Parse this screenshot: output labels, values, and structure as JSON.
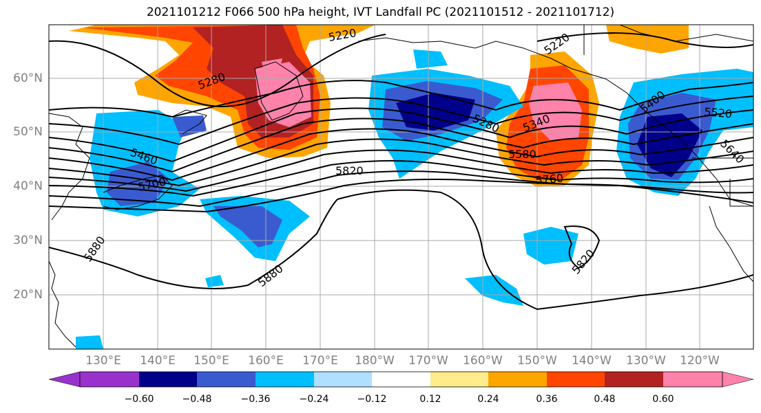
{
  "title": "2021101212 F066 500 hPa height, IVT Landfall PC (2021101512 - 2021101712)",
  "lat_labels": [
    "60°N",
    "50°N",
    "40°N",
    "30°N",
    "20°N"
  ],
  "lon_labels": [
    "130°E",
    "140°E",
    "150°E",
    "160°E",
    "170°E",
    "180°W",
    "170°W",
    "160°W",
    "150°W",
    "140°W",
    "130°W",
    "120°W"
  ],
  "contour_labels": [
    "5220",
    "5220",
    "5280",
    "5340",
    "5400",
    "5460",
    "5520",
    "5580",
    "5640",
    "5700",
    "5760",
    "5820",
    "5820",
    "5880",
    "5880",
    "5280"
  ],
  "colorbar": {
    "labels": [
      "−0.60",
      "−0.48",
      "−0.36",
      "−0.24",
      "−0.12",
      "0.12",
      "0.24",
      "0.36",
      "0.48",
      "0.60"
    ],
    "colors": [
      "#9932cc",
      "#00008b",
      "#3a5bd0",
      "#00bfff",
      "#b0e0ff",
      "#ffffff",
      "#ffec8b",
      "#ffa500",
      "#ff4500",
      "#b22222",
      "#ff82ab"
    ]
  }
}
